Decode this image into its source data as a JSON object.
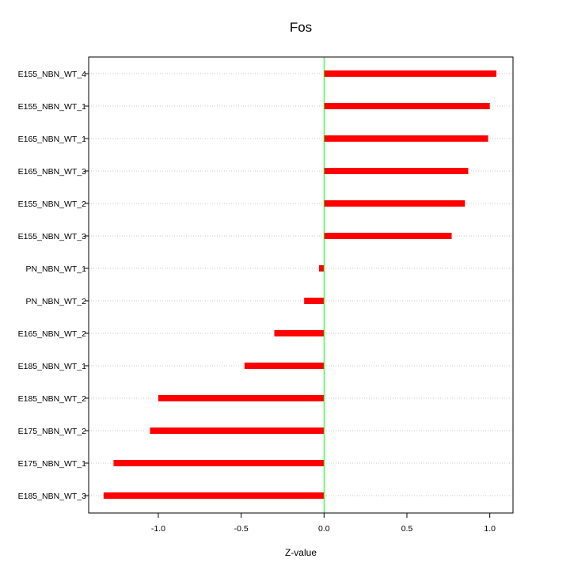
{
  "chart_data": {
    "type": "bar",
    "orientation": "horizontal",
    "title": "Fos",
    "xlabel": "Z-value",
    "ylabel": "",
    "xlim": [
      -1.42,
      1.14
    ],
    "xticks": [
      -1.0,
      -0.5,
      0.0,
      0.5,
      1.0
    ],
    "xtick_labels": [
      "-1.0",
      "-0.5",
      "0.0",
      "0.5",
      "1.0"
    ],
    "grid": "horizontal dotted",
    "reference_line": {
      "x": 0,
      "color": "#00ff00"
    },
    "bar_color": "#ff0000",
    "categories": [
      "E155_NBN_WT_4",
      "E155_NBN_WT_1",
      "E165_NBN_WT_1",
      "E165_NBN_WT_3",
      "E155_NBN_WT_2",
      "E155_NBN_WT_3",
      "PN_NBN_WT_1",
      "PN_NBN_WT_2",
      "E165_NBN_WT_2",
      "E185_NBN_WT_1",
      "E185_NBN_WT_2",
      "E175_NBN_WT_2",
      "E175_NBN_WT_1",
      "E185_NBN_WT_3"
    ],
    "values": [
      1.04,
      1.0,
      0.99,
      0.87,
      0.85,
      0.77,
      -0.03,
      -0.12,
      -0.3,
      -0.48,
      -1.0,
      -1.05,
      -1.27,
      -1.33
    ]
  }
}
